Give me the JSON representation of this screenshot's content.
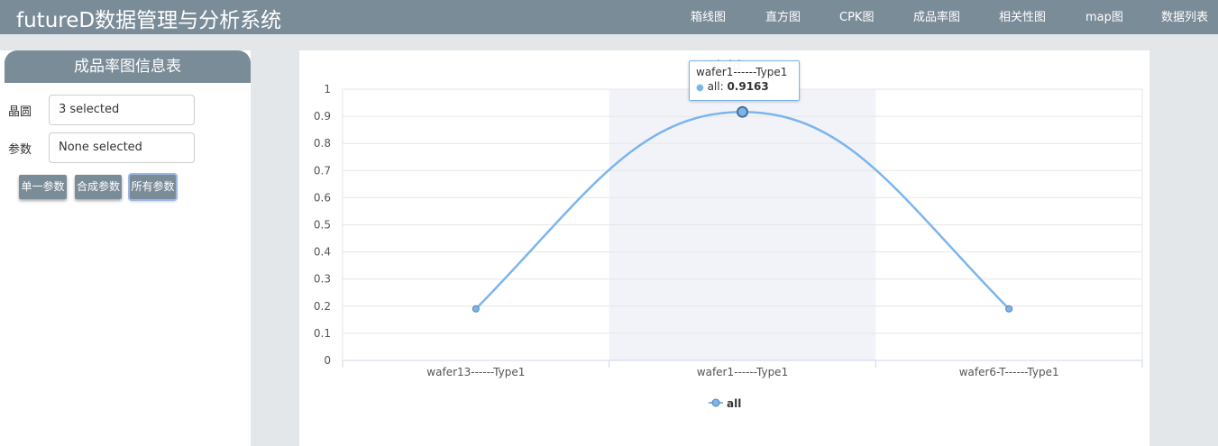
{
  "app": {
    "title": "futureD数据管理与分析系统"
  },
  "nav": [
    "箱线图",
    "直方图",
    "CPK图",
    "成品率图",
    "相关性图",
    "map图",
    "数据列表"
  ],
  "sidebar": {
    "title": "成品率图信息表",
    "wafer_label": "晶圆",
    "wafer_value": "3 selected",
    "param_label": "参数",
    "param_value": "None selected",
    "buttons": [
      "单一参数",
      "合成参数",
      "所有参数"
    ]
  },
  "tooltip": {
    "header": "wafer1------Type1",
    "series": "all",
    "value": "0.9163"
  },
  "colors": {
    "accent": "#7b8c99",
    "series": "#7cb5ec"
  },
  "chart_data": {
    "type": "line",
    "title": "Yield",
    "categories": [
      "wafer13------Type1",
      "wafer1------Type1",
      "wafer6-T------Type1"
    ],
    "series": [
      {
        "name": "all",
        "values": [
          0.19,
          0.9163,
          0.19
        ]
      }
    ],
    "yticks": [
      "0",
      "0.1",
      "0.2",
      "0.3",
      "0.4",
      "0.5",
      "0.6",
      "0.7",
      "0.8",
      "0.9",
      "1"
    ],
    "ylim": [
      0,
      1
    ],
    "highlight_index": 1,
    "legend": "bottom-center",
    "grid": true
  }
}
